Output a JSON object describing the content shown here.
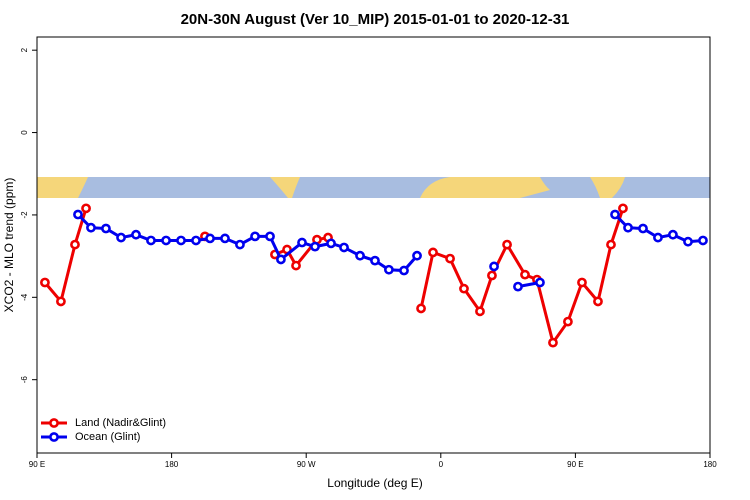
{
  "chart_data": {
    "type": "line",
    "title": "20N-30N August (Ver 10_MIP)   2015-01-01 to 2020-12-31",
    "x_label": "Longitude (deg E)",
    "y_label": "XCO2 - MLO trend (ppm)",
    "xlim": [
      90,
      540
    ],
    "ylim": [
      -7.78,
      2.32
    ],
    "xticks": [
      {
        "value": 90,
        "label": "90 E"
      },
      180,
      {
        "value": 270,
        "label": "90 W"
      },
      {
        "value": 360,
        "label": "0"
      },
      {
        "value": 450,
        "label": "90 E"
      },
      {
        "value": 540,
        "label": "180"
      }
    ],
    "yticks": [
      2,
      0,
      -2,
      -4,
      -6
    ],
    "legend": "bottom-left",
    "series": [
      {
        "name": "Land (Nadir&Glint)",
        "color": "#ee0000",
        "x": [
          95.3,
          106.0,
          115.4,
          122.8,
          null,
          202.3,
          null,
          249.1,
          257.2,
          263.2,
          277.2,
          284.6,
          null,
          346.8,
          354.8,
          366.2,
          375.5,
          386.2,
          394.2,
          404.3,
          416.3,
          424.3,
          435.0,
          445.0,
          454.4,
          465.1,
          473.8,
          481.8
        ],
        "values": [
          -3.64,
          -4.1,
          -2.72,
          -1.84,
          null,
          -2.52,
          null,
          -2.96,
          -2.84,
          -3.23,
          -2.6,
          -2.55,
          null,
          -4.27,
          -2.91,
          -3.06,
          -3.79,
          -4.34,
          -3.47,
          -2.72,
          -3.45,
          -3.57,
          -5.1,
          -4.59,
          -3.64,
          -4.1,
          -2.72,
          -1.84
        ]
      },
      {
        "name": "Ocean (Glint)",
        "color": "#0000ee",
        "x": [
          117.4,
          126.1,
          136.1,
          146.2,
          156.2,
          166.2,
          176.3,
          186.3,
          196.3,
          205.7,
          215.7,
          225.7,
          235.8,
          245.8,
          253.1,
          267.2,
          275.9,
          286.6,
          295.3,
          306.0,
          316.0,
          325.3,
          335.4,
          344.1,
          null,
          395.6,
          null,
          411.6,
          426.3,
          null,
          476.5,
          485.2,
          495.2,
          505.2,
          515.2,
          525.3,
          535.3
        ],
        "values": [
          -1.99,
          -2.31,
          -2.33,
          -2.55,
          -2.48,
          -2.62,
          -2.62,
          -2.62,
          -2.62,
          -2.57,
          -2.57,
          -2.72,
          -2.52,
          -2.52,
          -3.08,
          -2.67,
          -2.77,
          -2.69,
          -2.79,
          -2.99,
          -3.11,
          -3.33,
          -3.35,
          -2.99,
          null,
          -3.25,
          null,
          -3.74,
          -3.64,
          null,
          -1.99,
          -2.31,
          -2.33,
          -2.55,
          -2.48,
          -2.65,
          -2.62
        ]
      }
    ]
  }
}
